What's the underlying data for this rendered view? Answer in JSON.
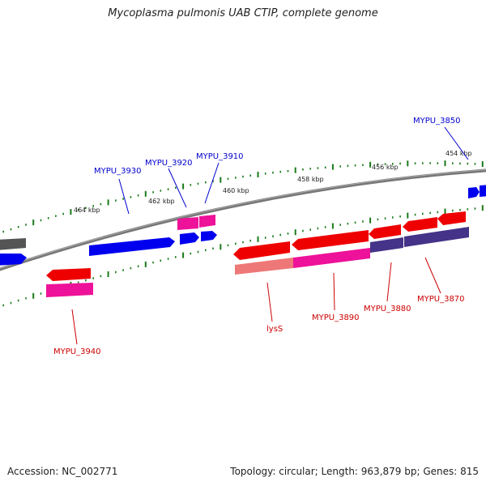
{
  "title": "Mycoplasma pulmonis UAB CTIP, complete genome",
  "accession": "Accession: NC_002771",
  "topology": "Topology: circular; Length: 963,879 bp; Genes: 815",
  "colors": {
    "axis": "#888888",
    "ticks": "#1a7a1a",
    "forward_label": "#0000cc",
    "reverse_label": "#cc0000",
    "gene_blue": "#0000ee",
    "gene_red": "#ee0000",
    "gene_pink": "#ee1199",
    "gene_navy": "#443388",
    "gene_gray": "#555555",
    "gene_salmon": "#ee7777"
  },
  "scale_labels": [
    "464 kbp",
    "462 kbp",
    "460 kbp",
    "458 kbp",
    "456 kbp",
    "454 kbp"
  ],
  "gene_labels": {
    "forward": [
      "MYPU_3930",
      "MYPU_3920",
      "MYPU_3910",
      "MYPU_3850"
    ],
    "reverse": [
      "MYPU_3940",
      "lysS",
      "MYPU_3890",
      "MYPU_3880",
      "MYPU_3870"
    ]
  }
}
